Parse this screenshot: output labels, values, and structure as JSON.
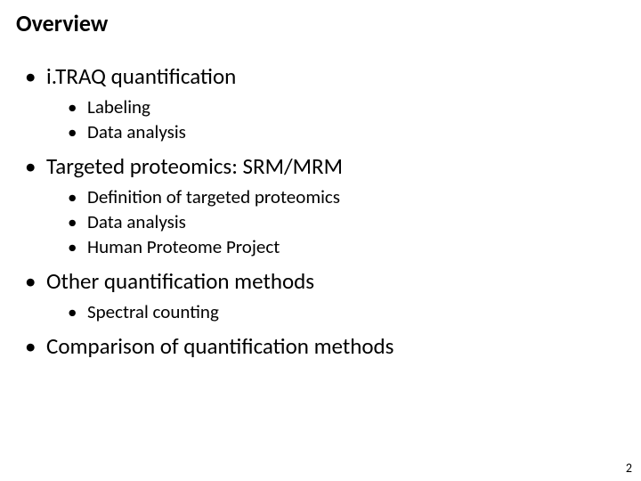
{
  "slide": {
    "title": "Overview",
    "page_number": "2",
    "bullets": [
      {
        "text": "i.TRAQ quantification",
        "children": [
          {
            "text": "Labeling"
          },
          {
            "text": "Data analysis"
          }
        ]
      },
      {
        "text": "Targeted proteomics: SRM/MRM",
        "children": [
          {
            "text": "Definition of targeted proteomics"
          },
          {
            "text": "Data analysis"
          },
          {
            "text": "Human Proteome Project"
          }
        ]
      },
      {
        "text": "Other quantification methods",
        "children": [
          {
            "text": "Spectral counting"
          }
        ]
      },
      {
        "text": "Comparison of quantification methods",
        "children": []
      }
    ]
  },
  "style": {
    "background_color": "#ffffff",
    "text_color": "#000000",
    "title_fontsize": 26,
    "title_fontweight": 700,
    "level1_fontsize": 25,
    "level2_fontsize": 21,
    "pagenum_fontsize": 14
  }
}
